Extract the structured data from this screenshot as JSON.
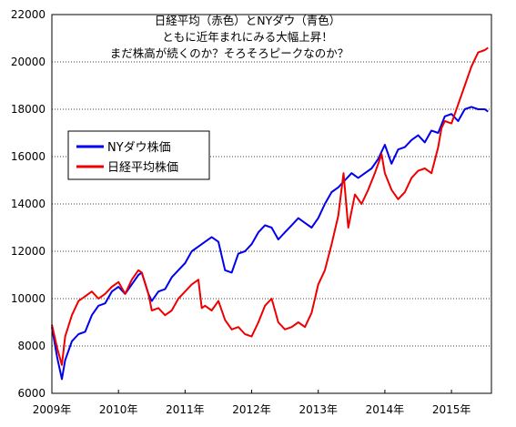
{
  "chart_data": {
    "type": "line",
    "title_lines": [
      "日経平均（赤色）とNYダウ（青色）",
      "ともに近年まれにみる大幅上昇！",
      "まだ株高が続くのか？そろそろピークなのか？"
    ],
    "xlabel": "",
    "ylabel": "",
    "x_ticks": [
      "2009年",
      "2010年",
      "2011年",
      "2012年",
      "2013年",
      "2014年",
      "2015年"
    ],
    "y_ticks": [
      "6000",
      "8000",
      "10000",
      "12000",
      "14000",
      "16000",
      "18000",
      "20000",
      "22000"
    ],
    "ylim": [
      6000,
      22000
    ],
    "xlim": [
      2009.0,
      2015.6
    ],
    "grid": "horizontal",
    "legend_position": "left-middle",
    "series": [
      {
        "name": "NYダウ株価",
        "color": "#0000ee",
        "x": [
          2009.0,
          2009.08,
          2009.15,
          2009.2,
          2009.3,
          2009.4,
          2009.5,
          2009.6,
          2009.7,
          2009.8,
          2009.9,
          2010.0,
          2010.1,
          2010.2,
          2010.3,
          2010.35,
          2010.45,
          2010.5,
          2010.6,
          2010.7,
          2010.8,
          2010.9,
          2011.0,
          2011.1,
          2011.2,
          2011.3,
          2011.4,
          2011.5,
          2011.6,
          2011.7,
          2011.8,
          2011.9,
          2012.0,
          2012.1,
          2012.2,
          2012.3,
          2012.4,
          2012.5,
          2012.6,
          2012.7,
          2012.8,
          2012.9,
          2013.0,
          2013.1,
          2013.2,
          2013.3,
          2013.4,
          2013.5,
          2013.6,
          2013.7,
          2013.8,
          2013.9,
          2014.0,
          2014.1,
          2014.2,
          2014.3,
          2014.4,
          2014.5,
          2014.6,
          2014.7,
          2014.8,
          2014.9,
          2015.0,
          2015.1,
          2015.2,
          2015.3,
          2015.4,
          2015.5,
          2015.55
        ],
        "y": [
          8800,
          7500,
          6600,
          7400,
          8200,
          8500,
          8600,
          9300,
          9700,
          9800,
          10300,
          10500,
          10200,
          10600,
          11000,
          11100,
          10200,
          9900,
          10300,
          10400,
          10900,
          11200,
          11500,
          12000,
          12200,
          12400,
          12600,
          12400,
          11200,
          11100,
          11900,
          12000,
          12300,
          12800,
          13100,
          13000,
          12500,
          12800,
          13100,
          13400,
          13200,
          13000,
          13400,
          14000,
          14500,
          14700,
          15000,
          15300,
          15100,
          15300,
          15500,
          15900,
          16500,
          15700,
          16300,
          16400,
          16700,
          16900,
          16600,
          17100,
          17000,
          17700,
          17800,
          17500,
          18000,
          18100,
          18000,
          18000,
          17900
        ]
      },
      {
        "name": "日経平均株価",
        "color": "#ee0000",
        "x": [
          2009.0,
          2009.08,
          2009.15,
          2009.2,
          2009.3,
          2009.4,
          2009.5,
          2009.6,
          2009.7,
          2009.8,
          2009.9,
          2010.0,
          2010.1,
          2010.2,
          2010.3,
          2010.35,
          2010.45,
          2010.5,
          2010.6,
          2010.7,
          2010.8,
          2010.9,
          2011.0,
          2011.1,
          2011.2,
          2011.25,
          2011.3,
          2011.4,
          2011.5,
          2011.6,
          2011.7,
          2011.8,
          2011.9,
          2012.0,
          2012.1,
          2012.2,
          2012.3,
          2012.4,
          2012.5,
          2012.6,
          2012.7,
          2012.8,
          2012.9,
          2013.0,
          2013.1,
          2013.2,
          2013.3,
          2013.38,
          2013.45,
          2013.55,
          2013.65,
          2013.75,
          2013.85,
          2013.95,
          2014.0,
          2014.1,
          2014.2,
          2014.3,
          2014.4,
          2014.5,
          2014.6,
          2014.7,
          2014.8,
          2014.85,
          2014.9,
          2015.0,
          2015.1,
          2015.2,
          2015.3,
          2015.4,
          2015.5,
          2015.55
        ],
        "y": [
          8900,
          7900,
          7200,
          8400,
          9300,
          9900,
          10100,
          10300,
          10000,
          10200,
          10500,
          10700,
          10200,
          10800,
          11200,
          11100,
          10200,
          9500,
          9600,
          9300,
          9500,
          10000,
          10300,
          10600,
          10800,
          9600,
          9700,
          9500,
          9900,
          9100,
          8700,
          8800,
          8500,
          8400,
          9000,
          9700,
          10000,
          9000,
          8700,
          8800,
          9000,
          8800,
          9400,
          10600,
          11200,
          12300,
          13500,
          15300,
          13000,
          14400,
          14000,
          14600,
          15300,
          16100,
          15300,
          14600,
          14200,
          14500,
          15100,
          15400,
          15500,
          15300,
          16400,
          17200,
          17500,
          17400,
          18200,
          19000,
          19800,
          20400,
          20500,
          20600
        ]
      }
    ]
  }
}
